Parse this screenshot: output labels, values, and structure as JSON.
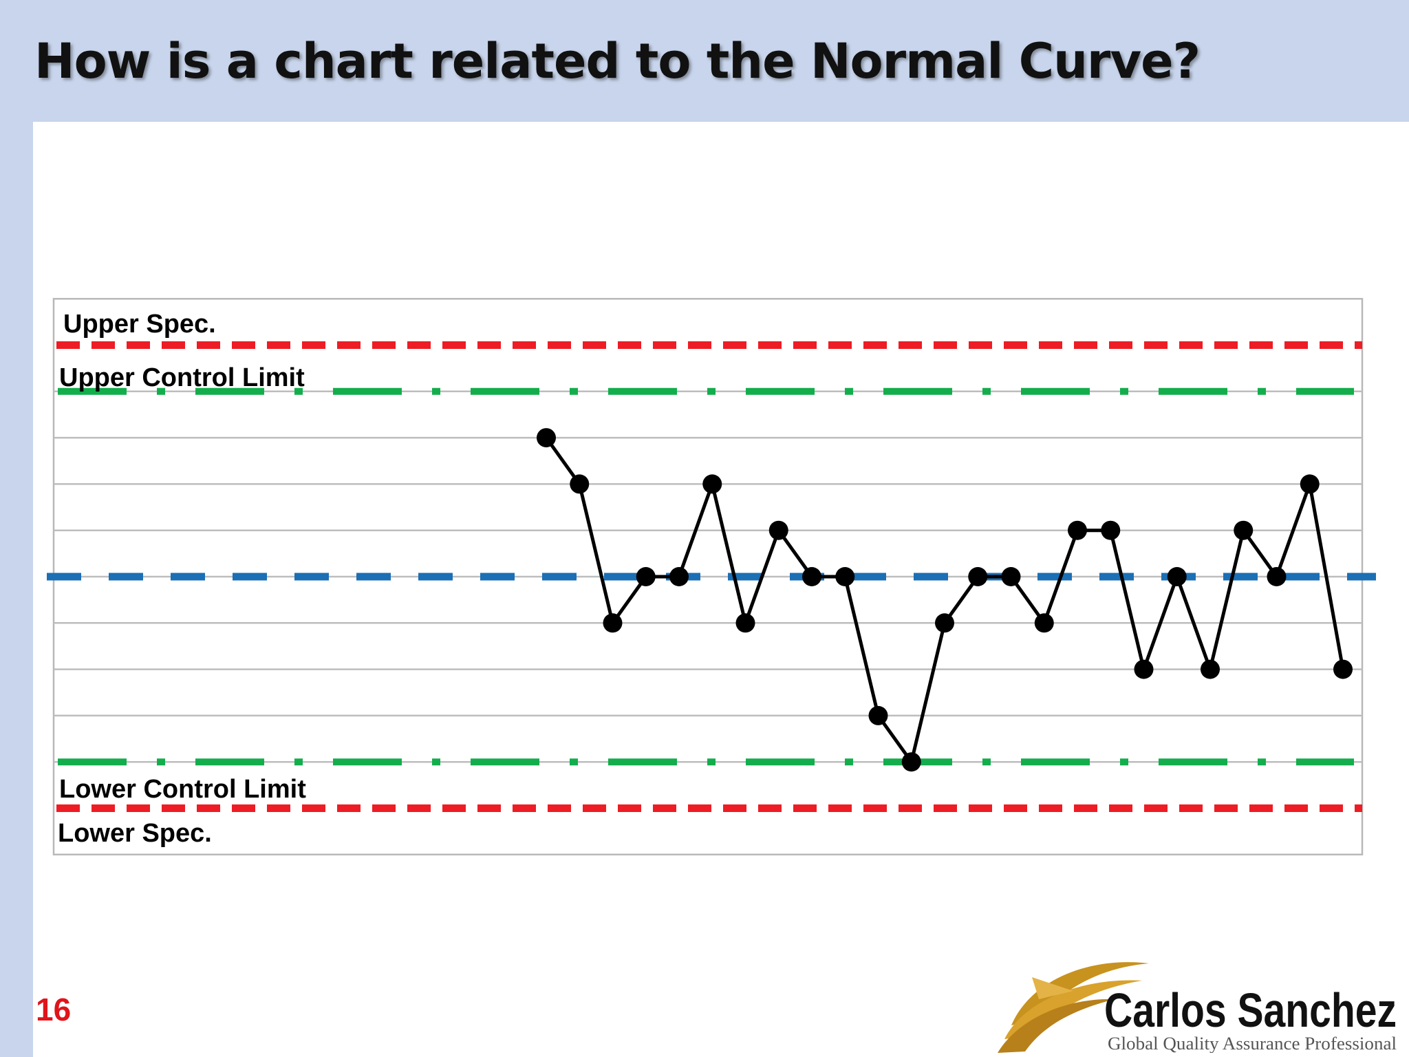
{
  "slide": {
    "title": "How is a chart related to the Normal Curve?",
    "page_number": "16"
  },
  "labels": {
    "upper_spec": "Upper Spec.",
    "upper_control_limit": "Upper Control Limit",
    "lower_control_limit": "Lower Control Limit",
    "lower_spec": "Lower Spec."
  },
  "colors": {
    "spec_line": "#ee1c24",
    "control_line": "#13ad4c",
    "center_line": "#1b6fb5",
    "data_line": "#000000"
  },
  "chart_data": {
    "type": "line",
    "band_levels": [
      -4,
      -3,
      -2,
      -1,
      0,
      1,
      2,
      3,
      4
    ],
    "upper_spec": 5,
    "upper_control_limit": 4,
    "center_line": 0,
    "lower_control_limit": -4,
    "lower_spec": -5,
    "ylim": [
      -6,
      6
    ],
    "values": [
      3,
      2,
      -1,
      0,
      0,
      2,
      -1,
      1,
      0,
      0,
      -3,
      -4,
      -1,
      0,
      0,
      -1,
      1,
      1,
      -2,
      0,
      -2,
      1,
      0,
      2,
      -2
    ]
  },
  "logo": {
    "name": "Carlos Sanchez",
    "tagline": "Global Quality Assurance Professional"
  }
}
